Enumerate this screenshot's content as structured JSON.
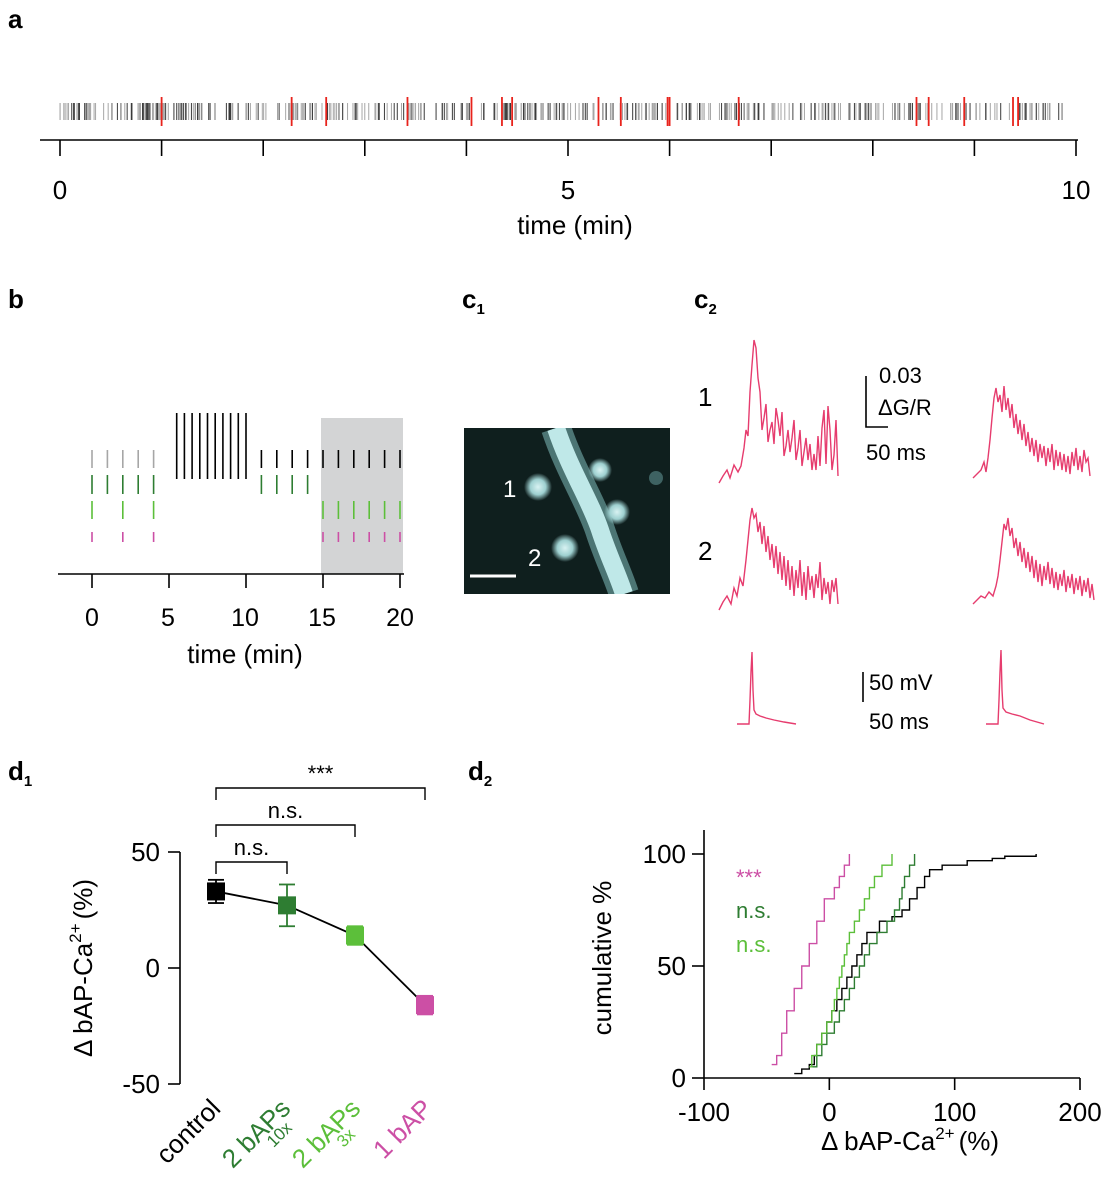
{
  "colors": {
    "raster_gray": "#a6a6a6",
    "raster_dark": "#3a3a3a",
    "highlight_red": "#e8231c",
    "control_black": "#000000",
    "dark_green": "#2e7d32",
    "light_green": "#5cbf3a",
    "magenta": "#cc4fa5",
    "trace_pink": "#e63c6e",
    "shade_gray": "#d3d4d5",
    "image_bg": "#0f1f1e",
    "dendrite": "#a8dcdc"
  },
  "panel_a": {
    "label": "a",
    "chart_data": {
      "type": "raster",
      "xlabel": "time (min)",
      "xlim": [
        0,
        10
      ],
      "ticks": [
        "0",
        "5",
        "10"
      ],
      "minor_tick_step": 1,
      "highlighted_times": [
        1.0,
        2.28,
        2.62,
        3.42,
        4.05,
        4.35,
        4.45,
        5.3,
        5.52,
        5.98,
        6.0,
        6.68,
        8.43,
        8.55,
        8.9,
        9.38,
        9.43
      ]
    }
  },
  "panel_b": {
    "label": "b",
    "chart_data": {
      "type": "raster",
      "xlabel": "time (min)",
      "xlim": [
        -3,
        20
      ],
      "ticks": [
        "0",
        "5",
        "10",
        "15",
        "20"
      ],
      "shaded_range": [
        15,
        20.3
      ],
      "rows": [
        {
          "color": "gray",
          "times": [
            0,
            1,
            2,
            3,
            4
          ]
        },
        {
          "color": "dark_green",
          "times": [
            0,
            1,
            2,
            3,
            4,
            11,
            12,
            13,
            14
          ]
        },
        {
          "color": "light_green",
          "times": [
            0,
            2,
            4,
            15,
            16,
            17,
            18,
            19,
            20
          ]
        },
        {
          "color": "magenta",
          "times": [
            0,
            2,
            4,
            15,
            16,
            17,
            18,
            19,
            20
          ]
        }
      ],
      "tall_block_times": [
        5.5,
        6,
        6.5,
        7,
        7.5,
        8,
        8.5,
        9,
        9.5,
        10
      ],
      "mid_block_times": [
        11,
        12,
        13,
        14,
        15,
        16,
        17,
        18,
        19,
        20
      ]
    }
  },
  "panel_c1": {
    "label": "c",
    "sub": "1",
    "spine_labels": [
      "1",
      "2"
    ]
  },
  "panel_c2": {
    "label": "c",
    "sub": "2",
    "row_labels": [
      "1",
      "2"
    ],
    "scale_top": [
      "0.03",
      "ΔG/R",
      "50 ms"
    ],
    "scale_bottom": [
      "50 mV",
      "50 ms"
    ]
  },
  "panel_d1": {
    "label": "d",
    "sub": "1",
    "chart_data": {
      "type": "line",
      "categories": [
        "control",
        "2 bAPs 10x",
        "2 bAPs 3x",
        "1 bAP"
      ],
      "category_text": [
        {
          "main": "control",
          "sub": ""
        },
        {
          "main": "2 bAPs",
          "sub": "10x"
        },
        {
          "main": "2 bAPs",
          "sub": "3x"
        },
        {
          "main": "1 bAP",
          "sub": ""
        }
      ],
      "values": [
        33,
        27,
        14,
        -16
      ],
      "errors": [
        5,
        9,
        4,
        4
      ],
      "ylabel_main": "Δ bAP-Ca",
      "ylabel_sup": "2+",
      "ylabel_tail": "(%)",
      "ylim": [
        -50,
        50
      ],
      "ytick_labels": [
        "50",
        "0",
        "-50"
      ],
      "ytick_values": [
        50,
        0,
        -50
      ],
      "brackets": [
        {
          "from": 0,
          "to": 3,
          "label": "***"
        },
        {
          "from": 0,
          "to": 2,
          "label": "n.s."
        },
        {
          "from": 0,
          "to": 1,
          "label": "n.s."
        }
      ]
    }
  },
  "panel_d2": {
    "label": "d",
    "sub": "2",
    "chart_data": {
      "type": "line",
      "xlabel_main": "Δ bAP-Ca",
      "xlabel_sup": "2+",
      "xlabel_tail": "(%)",
      "ylabel": "cumulative %",
      "xlim": [
        -100,
        200
      ],
      "ylim": [
        0,
        100
      ],
      "xtick_labels": [
        "-100",
        "0",
        "100",
        "200"
      ],
      "xtick_values": [
        -100,
        0,
        100,
        200
      ],
      "ytick_labels": [
        "0",
        "50",
        "100"
      ],
      "ytick_values": [
        0,
        50,
        100
      ],
      "annotations": [
        "***",
        "n.s.",
        "n.s."
      ],
      "series": [
        {
          "color": "control_black",
          "points": [
            [
              -28,
              2
            ],
            [
              -22,
              4
            ],
            [
              -16,
              6
            ],
            [
              -12,
              10
            ],
            [
              -10,
              15
            ],
            [
              -6,
              20
            ],
            [
              -2,
              25
            ],
            [
              2,
              30
            ],
            [
              6,
              35
            ],
            [
              10,
              40
            ],
            [
              14,
              45
            ],
            [
              18,
              50
            ],
            [
              22,
              55
            ],
            [
              26,
              60
            ],
            [
              30,
              65
            ],
            [
              40,
              70
            ],
            [
              50,
              72
            ],
            [
              58,
              75
            ],
            [
              64,
              80
            ],
            [
              70,
              85
            ],
            [
              76,
              90
            ],
            [
              80,
              93
            ],
            [
              90,
              95
            ],
            [
              110,
              97
            ],
            [
              130,
              98
            ],
            [
              140,
              99
            ],
            [
              165,
              100
            ]
          ]
        },
        {
          "color": "dark_green",
          "points": [
            [
              -14,
              5
            ],
            [
              -10,
              10
            ],
            [
              -6,
              15
            ],
            [
              -2,
              20
            ],
            [
              4,
              25
            ],
            [
              8,
              30
            ],
            [
              12,
              35
            ],
            [
              16,
              40
            ],
            [
              20,
              45
            ],
            [
              24,
              50
            ],
            [
              28,
              55
            ],
            [
              32,
              60
            ],
            [
              38,
              65
            ],
            [
              46,
              70
            ],
            [
              52,
              75
            ],
            [
              56,
              80
            ],
            [
              58,
              85
            ],
            [
              60,
              90
            ],
            [
              64,
              95
            ],
            [
              68,
              100
            ]
          ]
        },
        {
          "color": "light_green",
          "points": [
            [
              -16,
              5
            ],
            [
              -14,
              10
            ],
            [
              -10,
              15
            ],
            [
              -6,
              20
            ],
            [
              -2,
              25
            ],
            [
              2,
              30
            ],
            [
              4,
              35
            ],
            [
              6,
              40
            ],
            [
              8,
              45
            ],
            [
              10,
              50
            ],
            [
              12,
              55
            ],
            [
              14,
              60
            ],
            [
              16,
              65
            ],
            [
              20,
              70
            ],
            [
              24,
              75
            ],
            [
              28,
              80
            ],
            [
              32,
              85
            ],
            [
              36,
              90
            ],
            [
              42,
              95
            ],
            [
              50,
              100
            ]
          ]
        },
        {
          "color": "magenta",
          "points": [
            [
              -46,
              6
            ],
            [
              -42,
              10
            ],
            [
              -38,
              20
            ],
            [
              -34,
              30
            ],
            [
              -28,
              40
            ],
            [
              -22,
              50
            ],
            [
              -16,
              60
            ],
            [
              -10,
              70
            ],
            [
              -4,
              80
            ],
            [
              4,
              85
            ],
            [
              8,
              90
            ],
            [
              12,
              95
            ],
            [
              16,
              100
            ]
          ]
        }
      ]
    }
  }
}
